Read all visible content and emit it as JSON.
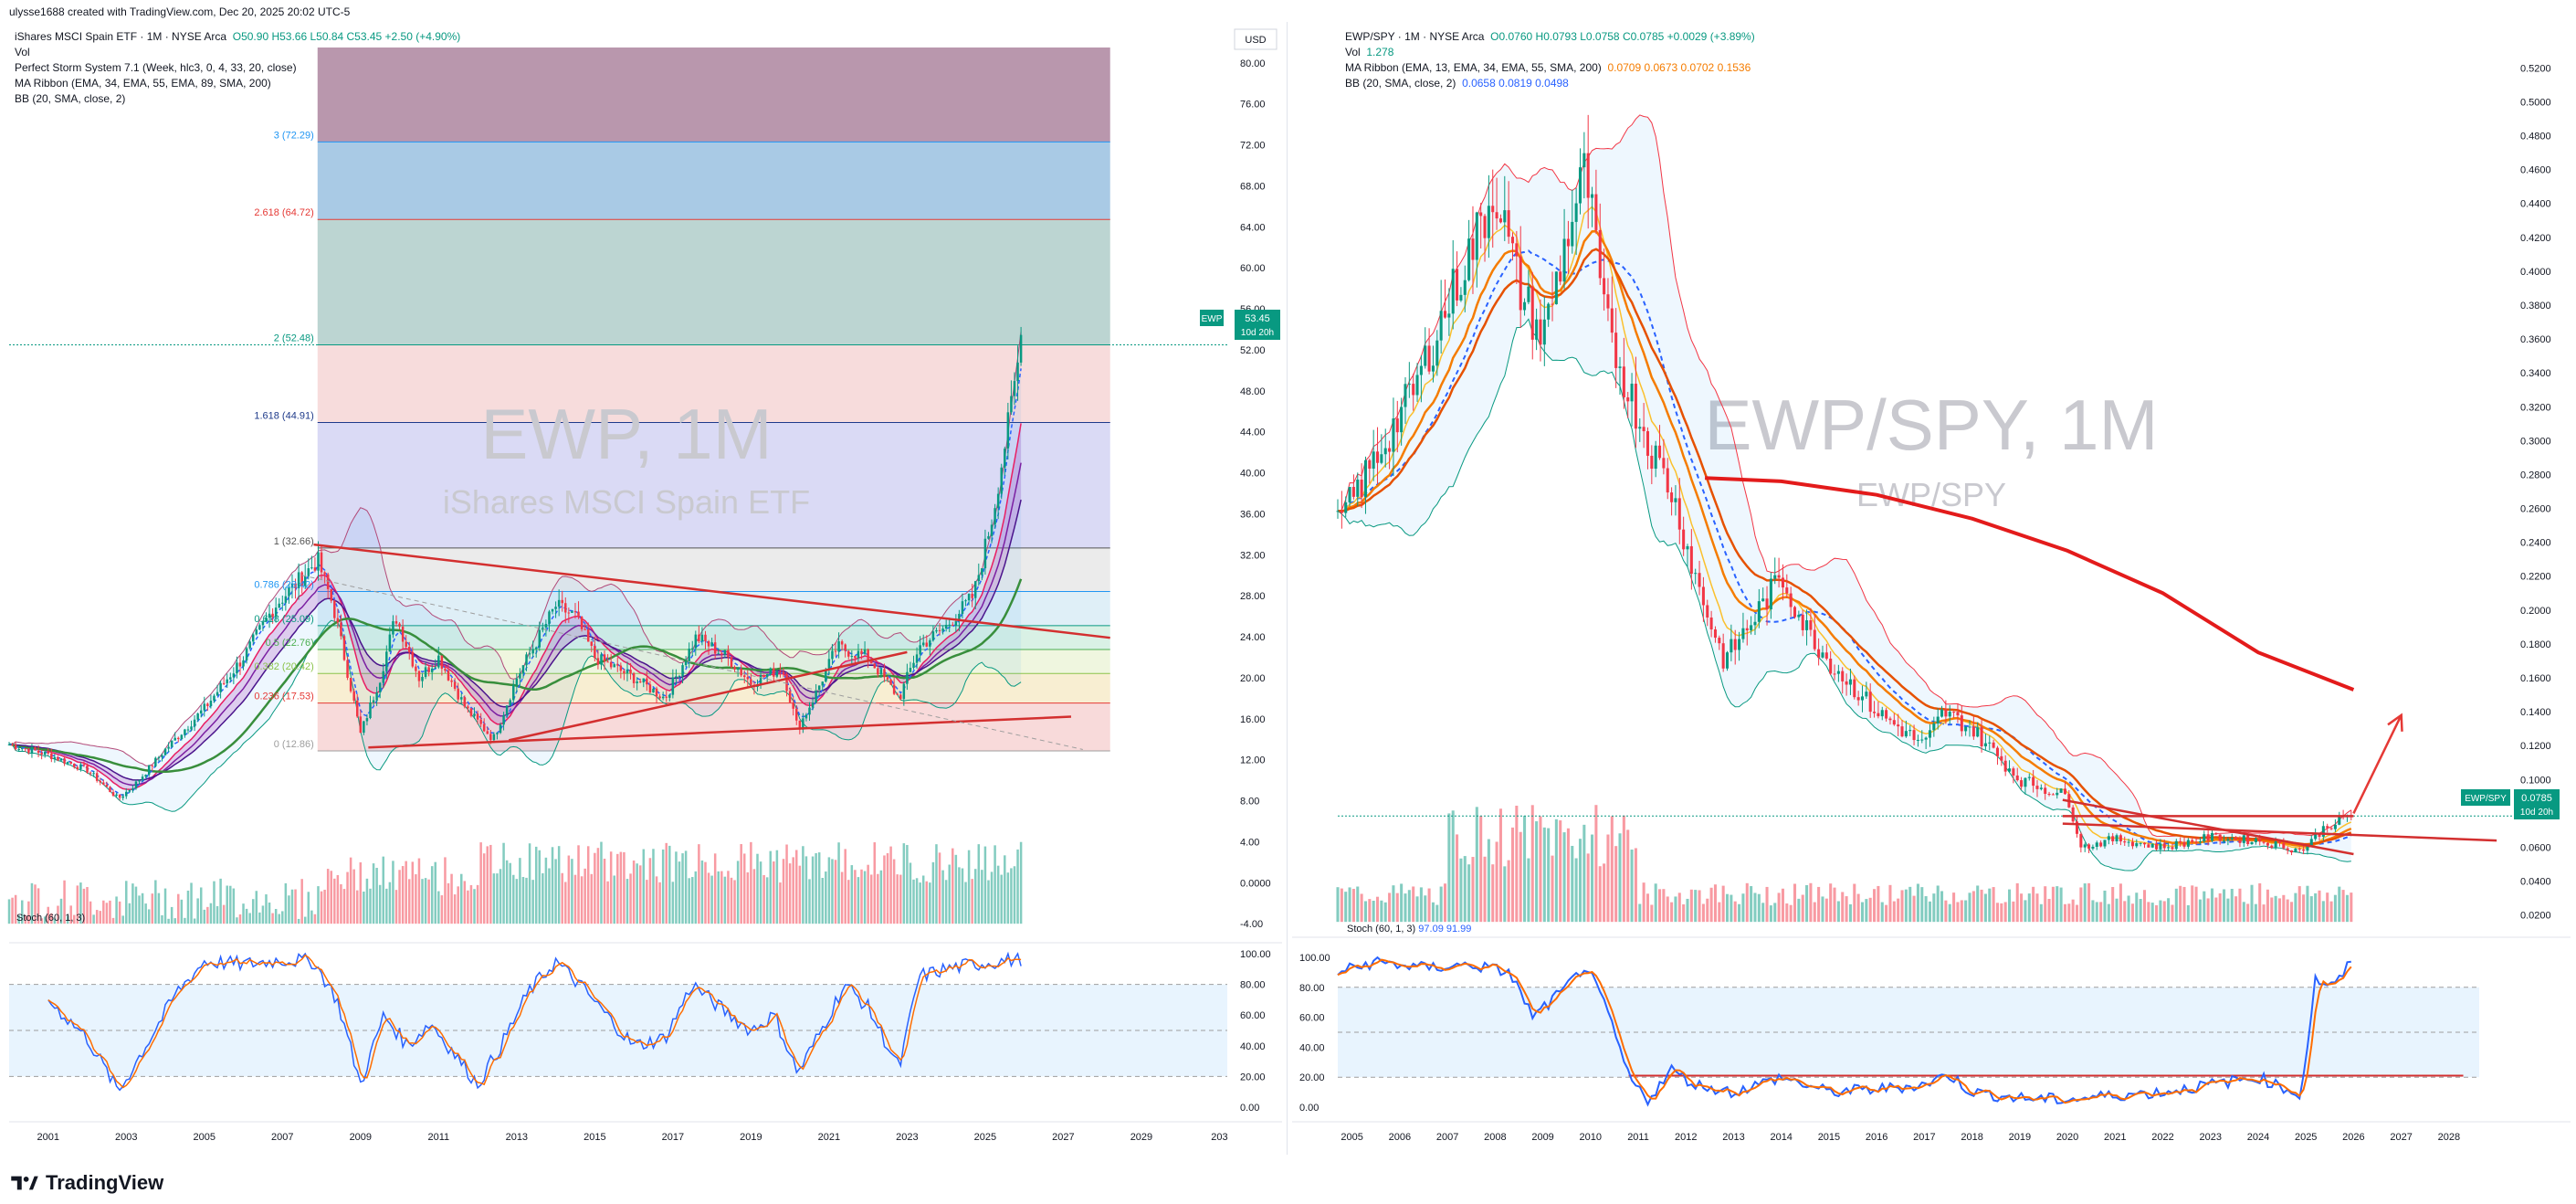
{
  "header": {
    "caption": "ulysse1688 created with TradingView.com, Dec 20, 2025 20:02 UTC-5"
  },
  "footer": {
    "brand": "TradingView"
  },
  "left": {
    "legend": {
      "symbol_line": "iShares MSCI Spain ETF · 1M · NYSE Arca",
      "ohlc": "O50.90 H53.66 L50.84 C53.45 +2.50 (+4.90%)",
      "vol": "Vol",
      "ind1": "Perfect Storm System 7.1 (Week, hlc3, 0, 4, 33, 20, close)",
      "ind2": "MA Ribbon (EMA, 34, EMA, 55, EMA, 89, SMA, 200)",
      "ind3": "BB (20, SMA, close, 2)"
    },
    "currency": "USD",
    "watermark": {
      "line1": "EWP, 1M",
      "line2": "iShares MSCI Spain ETF"
    },
    "price_tag": {
      "symbol": "EWP",
      "value": "53.45",
      "timer": "10d 20h"
    },
    "stoch_label": "Stoch (60, 1, 3)",
    "fib_labels": [
      "3 (72.29)",
      "2.618 (64.72)",
      "2 (52.48)",
      "1.618 (44.91)",
      "1 (32.66)",
      "0.786 (28.42)",
      "0.618 (25.09)",
      "0.5 (22.76)",
      "0.382 (20.42)",
      "0.236 (17.53)",
      "0 (12.86)"
    ]
  },
  "right": {
    "legend": {
      "symbol_line": "EWP/SPY · 1M · NYSE Arca",
      "ohlc": "O0.0760 H0.0793 L0.0758 C0.0785 +0.0029 (+3.89%)",
      "vol_label": "Vol",
      "vol_value": "1.278",
      "ind1": "MA Ribbon (EMA, 13, EMA, 34, EMA, 55, SMA, 200)",
      "ind1_values": "0.0709 0.0673 0.0702 0.1536",
      "ind2": "BB (20, SMA, close, 2)",
      "ind2_values": "0.0658 0.0819 0.0498"
    },
    "watermark": {
      "line1": "EWP/SPY, 1M",
      "line2": "EWP/SPY"
    },
    "price_tag": {
      "symbol": "EWP/SPY",
      "value": "0.0785",
      "timer": "10d 20h"
    },
    "stoch_label": "Stoch (60, 1, 3)",
    "stoch_values": "97.09 91.99"
  },
  "chart_data": [
    {
      "type": "candlestick",
      "title": "iShares MSCI Spain ETF · 1M · NYSE Arca",
      "xlabel": "",
      "ylabel": "",
      "x_ticks": [
        "2001",
        "2003",
        "2005",
        "2007",
        "2009",
        "2011",
        "2013",
        "2015",
        "2017",
        "2019",
        "2021",
        "2023",
        "2025",
        "2027",
        "2029",
        "203"
      ],
      "y_ticks": [
        "80.00",
        "76.00",
        "72.00",
        "68.00",
        "64.00",
        "60.00",
        "56.00",
        "52.00",
        "48.00",
        "44.00",
        "40.00",
        "36.00",
        "32.00",
        "28.00",
        "24.00",
        "20.00",
        "16.00",
        "12.00",
        "8.00",
        "4.00",
        "0.0000",
        "-4.00"
      ],
      "ylim": [
        -5.5,
        81.5
      ],
      "xlim": [
        2000.0,
        2031.2
      ],
      "grid": false,
      "close_path": [
        [
          2000.0,
          13.5
        ],
        [
          2001.0,
          12.5
        ],
        [
          2002.0,
          11.0
        ],
        [
          2002.8,
          8.2
        ],
        [
          2003.2,
          9.5
        ],
        [
          2004.0,
          13.0
        ],
        [
          2005.0,
          17.0
        ],
        [
          2006.0,
          22.0
        ],
        [
          2006.8,
          27.0
        ],
        [
          2007.3,
          29.0
        ],
        [
          2007.9,
          31.5
        ],
        [
          2008.3,
          27.0
        ],
        [
          2008.7,
          20.0
        ],
        [
          2009.0,
          14.5
        ],
        [
          2009.5,
          20.0
        ],
        [
          2009.9,
          26.0
        ],
        [
          2010.5,
          20.0
        ],
        [
          2011.0,
          22.0
        ],
        [
          2011.7,
          17.0
        ],
        [
          2012.4,
          14.0
        ],
        [
          2013.0,
          20.0
        ],
        [
          2014.0,
          27.0
        ],
        [
          2014.5,
          26.0
        ],
        [
          2015.0,
          22.0
        ],
        [
          2016.0,
          20.0
        ],
        [
          2016.8,
          18.0
        ],
        [
          2017.6,
          24.0
        ],
        [
          2018.4,
          22.0
        ],
        [
          2019.0,
          19.5
        ],
        [
          2019.8,
          21.0
        ],
        [
          2020.2,
          15.0
        ],
        [
          2020.6,
          18.0
        ],
        [
          2021.2,
          23.0
        ],
        [
          2022.0,
          22.0
        ],
        [
          2022.8,
          18.0
        ],
        [
          2023.3,
          23.0
        ],
        [
          2024.0,
          25.0
        ],
        [
          2024.7,
          28.0
        ],
        [
          2025.2,
          36.0
        ],
        [
          2025.6,
          45.0
        ],
        [
          2025.95,
          53.45
        ]
      ],
      "last_close": 53.45,
      "fib_levels": [
        {
          "ratio": "3",
          "price": 72.29
        },
        {
          "ratio": "2.618",
          "price": 64.72
        },
        {
          "ratio": "2",
          "price": 52.48
        },
        {
          "ratio": "1.618",
          "price": 44.91
        },
        {
          "ratio": "1",
          "price": 32.66
        },
        {
          "ratio": "0.786",
          "price": 28.42
        },
        {
          "ratio": "0.618",
          "price": 25.09
        },
        {
          "ratio": "0.5",
          "price": 22.76
        },
        {
          "ratio": "0.382",
          "price": 20.42
        },
        {
          "ratio": "0.236",
          "price": 17.53
        },
        {
          "ratio": "0",
          "price": 12.86
        }
      ],
      "fib_fill_colors": [
        "#9b6b8a",
        "#6fa6d4",
        "#8fb9b4",
        "#f2c4c4",
        "#c2c2ee",
        "#dedede",
        "#c9e4f2",
        "#bfe7d4",
        "#e4f0c9",
        "#f4e2b4",
        "#f3c2c2"
      ],
      "fib_label_colors": [
        "#2196f3",
        "#e53935",
        "#089981",
        "#1e3a8a",
        "#555555",
        "#2196f3",
        "#089981",
        "#4caf50",
        "#8bc34a",
        "#e53935",
        "#9e9e9e"
      ],
      "trendlines": [
        {
          "from": [
            2007.8,
            33.0
          ],
          "to": [
            2028.2,
            23.9
          ],
          "color": "#d32f2f"
        },
        {
          "from": [
            2009.2,
            13.2
          ],
          "to": [
            2027.2,
            16.2
          ],
          "color": "#d32f2f"
        },
        {
          "from": [
            2012.8,
            13.9
          ],
          "to": [
            2023.0,
            22.5
          ],
          "color": "#d32f2f"
        },
        {
          "from": [
            2007.5,
            30.0
          ],
          "to": [
            2027.5,
            13.0
          ],
          "color": "#9e9e9e",
          "dashed": true
        }
      ],
      "volume_baseline": -4.0,
      "stoch": {
        "label": "Stoch (60, 1, 3)",
        "ylim": [
          0,
          100
        ],
        "y_ticks": [
          "100.00",
          "80.00",
          "60.00",
          "40.00",
          "20.00",
          "0.00"
        ],
        "bands": [
          20,
          80
        ],
        "k_path": [
          [
            2001.0,
            70
          ],
          [
            2002.0,
            45
          ],
          [
            2002.8,
            10
          ],
          [
            2003.5,
            40
          ],
          [
            2004.3,
            75
          ],
          [
            2005.0,
            95
          ],
          [
            2006.0,
            93
          ],
          [
            2007.0,
            96
          ],
          [
            2007.8,
            95
          ],
          [
            2008.4,
            70
          ],
          [
            2009.0,
            15
          ],
          [
            2009.6,
            60
          ],
          [
            2010.2,
            40
          ],
          [
            2010.8,
            55
          ],
          [
            2011.4,
            35
          ],
          [
            2012.0,
            15
          ],
          [
            2012.6,
            40
          ],
          [
            2013.3,
            75
          ],
          [
            2014.0,
            95
          ],
          [
            2014.6,
            80
          ],
          [
            2015.3,
            60
          ],
          [
            2016.0,
            40
          ],
          [
            2016.8,
            45
          ],
          [
            2017.5,
            80
          ],
          [
            2018.2,
            65
          ],
          [
            2019.0,
            50
          ],
          [
            2019.6,
            60
          ],
          [
            2020.2,
            22
          ],
          [
            2020.8,
            50
          ],
          [
            2021.4,
            80
          ],
          [
            2022.0,
            65
          ],
          [
            2022.8,
            25
          ],
          [
            2023.3,
            85
          ],
          [
            2024.0,
            90
          ],
          [
            2024.7,
            93
          ],
          [
            2025.95,
            97
          ]
        ]
      }
    },
    {
      "type": "candlestick",
      "title": "EWP/SPY · 1M · NYSE Arca",
      "xlabel": "",
      "ylabel": "",
      "x_ticks": [
        "2005",
        "2006",
        "2007",
        "2008",
        "2009",
        "2010",
        "2011",
        "2012",
        "2013",
        "2014",
        "2015",
        "2016",
        "2017",
        "2018",
        "2019",
        "2020",
        "2021",
        "2022",
        "2023",
        "2024",
        "2025",
        "2026",
        "2027",
        "2028"
      ],
      "y_ticks": [
        "0.5200",
        "0.5000",
        "0.4800",
        "0.4600",
        "0.4400",
        "0.4200",
        "0.4000",
        "0.3800",
        "0.3600",
        "0.3400",
        "0.3200",
        "0.3000",
        "0.2800",
        "0.2600",
        "0.2400",
        "0.2200",
        "0.2000",
        "0.1800",
        "0.1600",
        "0.1400",
        "0.1200",
        "0.1000",
        "0.0800",
        "0.0600",
        "0.0400",
        "0.0200"
      ],
      "ylim": [
        0.008,
        0.532
      ],
      "xlim": [
        2004.7,
        2029.4
      ],
      "grid": false,
      "close_path": [
        [
          2004.7,
          0.25
        ],
        [
          2005.5,
          0.29
        ],
        [
          2006.3,
          0.33
        ],
        [
          2007.0,
          0.38
        ],
        [
          2007.6,
          0.42
        ],
        [
          2008.0,
          0.45
        ],
        [
          2008.5,
          0.39
        ],
        [
          2009.0,
          0.36
        ],
        [
          2009.5,
          0.42
        ],
        [
          2009.9,
          0.46
        ],
        [
          2010.3,
          0.37
        ],
        [
          2010.8,
          0.33
        ],
        [
          2011.2,
          0.3
        ],
        [
          2011.7,
          0.27
        ],
        [
          2012.3,
          0.21
        ],
        [
          2012.8,
          0.17
        ],
        [
          2013.3,
          0.19
        ],
        [
          2014.0,
          0.22
        ],
        [
          2014.5,
          0.19
        ],
        [
          2015.0,
          0.17
        ],
        [
          2016.0,
          0.14
        ],
        [
          2017.0,
          0.12
        ],
        [
          2017.4,
          0.14
        ],
        [
          2018.0,
          0.13
        ],
        [
          2019.0,
          0.1
        ],
        [
          2020.0,
          0.09
        ],
        [
          2020.3,
          0.06
        ],
        [
          2021.0,
          0.065
        ],
        [
          2022.0,
          0.06
        ],
        [
          2023.0,
          0.066
        ],
        [
          2024.0,
          0.064
        ],
        [
          2024.9,
          0.058
        ],
        [
          2025.4,
          0.072
        ],
        [
          2025.95,
          0.0785
        ]
      ],
      "last_close": 0.0785,
      "ema200_path": [
        [
          2012.4,
          0.278
        ],
        [
          2014.0,
          0.276
        ],
        [
          2016.0,
          0.268
        ],
        [
          2018.0,
          0.254
        ],
        [
          2020.0,
          0.235
        ],
        [
          2022.0,
          0.21
        ],
        [
          2024.0,
          0.175
        ],
        [
          2026.0,
          0.153
        ]
      ],
      "trendlines": [
        {
          "from": [
            2019.9,
            0.0784
          ],
          "to": [
            2026.0,
            0.0784
          ],
          "color": "#d32f2f"
        },
        {
          "from": [
            2019.9,
            0.074
          ],
          "to": [
            2029.0,
            0.064
          ],
          "color": "#d32f2f"
        },
        {
          "from": [
            2019.9,
            0.088
          ],
          "to": [
            2026.0,
            0.056
          ],
          "color": "#d32f2f"
        }
      ],
      "arrow": {
        "from": [
          2026.0,
          0.08
        ],
        "to": [
          2027.0,
          0.138
        ],
        "color": "#e53935"
      },
      "stoch": {
        "label": "Stoch (60, 1, 3)",
        "ylim": [
          0,
          100
        ],
        "y_ticks": [
          "100.00",
          "80.00",
          "60.00",
          "40.00",
          "20.00",
          "0.00"
        ],
        "bands": [
          20,
          80
        ],
        "k_path": [
          [
            2004.7,
            90
          ],
          [
            2005.5,
            97
          ],
          [
            2006.5,
            93
          ],
          [
            2007.5,
            95
          ],
          [
            2008.3,
            90
          ],
          [
            2008.8,
            60
          ],
          [
            2009.5,
            80
          ],
          [
            2009.9,
            95
          ],
          [
            2010.4,
            60
          ],
          [
            2010.8,
            20
          ],
          [
            2011.2,
            5
          ],
          [
            2011.7,
            25
          ],
          [
            2012.2,
            15
          ],
          [
            2013.0,
            10
          ],
          [
            2014.0,
            20
          ],
          [
            2015.0,
            10
          ],
          [
            2016.0,
            12
          ],
          [
            2017.0,
            15
          ],
          [
            2017.5,
            22
          ],
          [
            2018.0,
            10
          ],
          [
            2019.0,
            6
          ],
          [
            2020.0,
            5
          ],
          [
            2021.0,
            8
          ],
          [
            2022.0,
            10
          ],
          [
            2023.0,
            15
          ],
          [
            2024.0,
            20
          ],
          [
            2024.9,
            8
          ],
          [
            2025.2,
            85
          ],
          [
            2025.6,
            80
          ],
          [
            2025.95,
            97
          ]
        ],
        "hline": 21
      }
    }
  ]
}
